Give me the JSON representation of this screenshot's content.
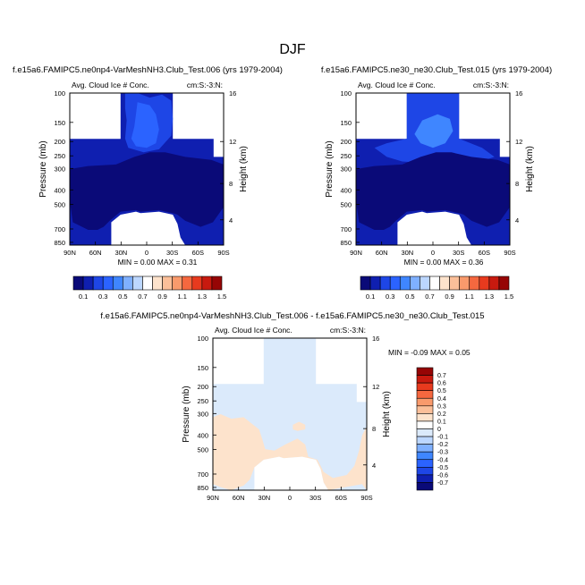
{
  "figure": {
    "title": "DJF"
  },
  "colors": {
    "navy": "#0a0a78",
    "dark": "#0f1fb0",
    "mid": "#1e46e6",
    "blue": "#2b63ff",
    "light": "#3f86ff",
    "sky": "#dbeafb",
    "peach": "#fde3cc"
  },
  "chart_data": [
    {
      "id": "panel-1",
      "type": "contour",
      "title": "f.e15a6.FAMIPC5.ne0np4-VarMeshNH3.Club_Test.006 (yrs 1979-2004)",
      "left_label": "Avg. Cloud Ice # Conc.",
      "right_label": "cm:S:-3:N:",
      "xlabel": "",
      "ylabel": "Pressure (mb)",
      "ylabel_right": "Height (km)",
      "xticks": [
        "90N",
        "60N",
        "30N",
        "0",
        "30S",
        "60S",
        "90S"
      ],
      "yticks": [
        "100",
        "150",
        "200",
        "250",
        "300",
        "400",
        "500",
        "700",
        "850"
      ],
      "yticks_right": [
        "16",
        "12",
        "8",
        "4"
      ],
      "min": "0.00",
      "max": "0.31",
      "minmax_text": "MIN =   0.00   MAX =   0.31"
    },
    {
      "id": "panel-2",
      "type": "contour",
      "title": "f.e15a6.FAMIPC5.ne30_ne30.Club_Test.015 (yrs 1979-2004)",
      "left_label": "Avg. Cloud Ice # Conc.",
      "right_label": "cm:S:-3:N:",
      "xlabel": "",
      "ylabel": "Pressure (mb)",
      "ylabel_right": "Height (km)",
      "xticks": [
        "90N",
        "60N",
        "30N",
        "0",
        "30S",
        "60S",
        "90S"
      ],
      "yticks": [
        "100",
        "150",
        "200",
        "250",
        "300",
        "400",
        "500",
        "700",
        "850"
      ],
      "yticks_right": [
        "16",
        "12",
        "8",
        "4"
      ],
      "min": "0.00",
      "max": "0.36",
      "minmax_text": "MIN =   0.00   MAX =   0.36"
    },
    {
      "id": "panel-diff",
      "type": "contour",
      "title": "f.e15a6.FAMIPC5.ne0np4-VarMeshNH3.Club_Test.006 - f.e15a6.FAMIPC5.ne30_ne30.Club_Test.015",
      "left_label": "Avg. Cloud Ice # Conc.",
      "right_label": "cm:S:-3:N:",
      "xlabel": "",
      "ylabel": "Pressure (mb)",
      "ylabel_right": "Height (km)",
      "xticks": [
        "90N",
        "60N",
        "30N",
        "0",
        "30S",
        "60S",
        "90S"
      ],
      "yticks": [
        "100",
        "150",
        "200",
        "250",
        "300",
        "400",
        "500",
        "700",
        "850"
      ],
      "yticks_right": [
        "16",
        "12",
        "8",
        "4"
      ],
      "min": "-0.09",
      "max": "0.05",
      "minmax_text": "MIN =  -0.09  MAX =   0.05"
    }
  ],
  "colorbar_main": {
    "labels": [
      "0.1",
      "0.3",
      "0.5",
      "0.7",
      "0.9",
      "1.1",
      "1.3",
      "1.5"
    ],
    "colors": [
      "#0a0a78",
      "#0f1fb0",
      "#1e46e6",
      "#2b63ff",
      "#3f86ff",
      "#7fb0ff",
      "#bcd7ff",
      "#ffffff",
      "#fde3cc",
      "#fbbf99",
      "#f99a6c",
      "#f5683f",
      "#e83a1e",
      "#c81a0f",
      "#960505"
    ]
  },
  "colorbar_diff": {
    "labels": [
      "0.7",
      "0.6",
      "0.5",
      "0.4",
      "0.3",
      "0.2",
      "0.1",
      "0",
      "-0.1",
      "-0.2",
      "-0.3",
      "-0.4",
      "-0.5",
      "-0.6",
      "-0.7"
    ],
    "colors": [
      "#960505",
      "#c81a0f",
      "#e83a1e",
      "#f5683f",
      "#f99a6c",
      "#fbbf99",
      "#fde3cc",
      "#ffffff",
      "#dbeafb",
      "#bcd7ff",
      "#7fb0ff",
      "#3f86ff",
      "#2b63ff",
      "#1e46e6",
      "#0f1fb0",
      "#0a0a78"
    ]
  }
}
